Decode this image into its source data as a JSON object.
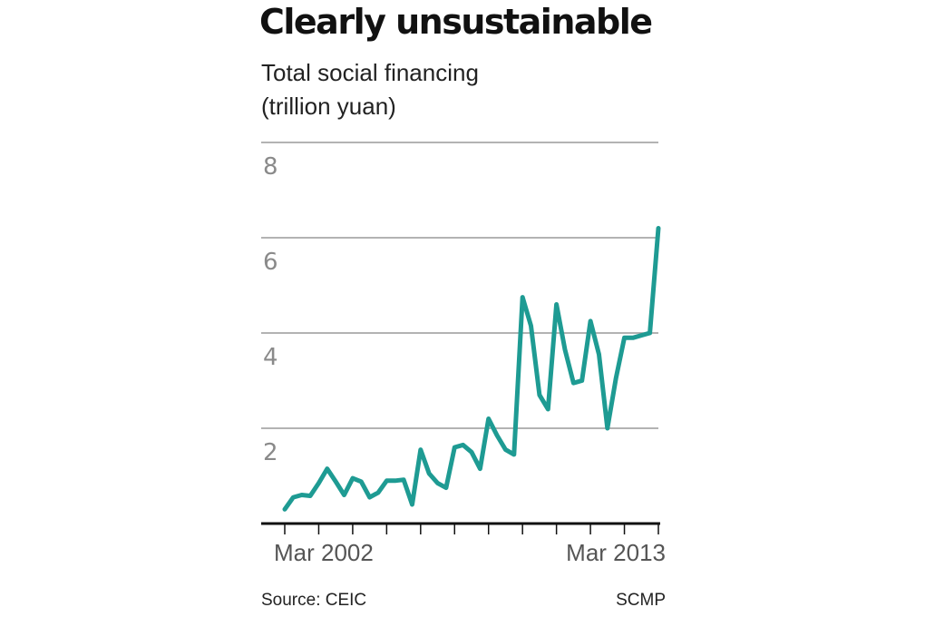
{
  "chart_data": {
    "type": "line",
    "title": "Clearly unsustainable",
    "subtitle_lines": [
      "Total social financing",
      "(trillion yuan)"
    ],
    "xlabel": "",
    "ylabel": "trillion yuan",
    "ylim": [
      0,
      8
    ],
    "y_ticks": [
      2,
      4,
      6,
      8
    ],
    "x_tick_labels": [
      "Mar 2002",
      "Mar 2013"
    ],
    "series": [
      {
        "name": "Total social financing",
        "color": "#1e9b93",
        "values": [
          0.3,
          0.55,
          0.6,
          0.58,
          0.85,
          1.15,
          0.88,
          0.6,
          0.95,
          0.88,
          0.55,
          0.65,
          0.9,
          0.9,
          0.92,
          0.4,
          1.55,
          1.05,
          0.85,
          0.75,
          1.6,
          1.65,
          1.5,
          1.15,
          2.2,
          1.85,
          1.55,
          1.45,
          4.75,
          4.15,
          2.7,
          2.4,
          4.6,
          3.65,
          2.95,
          3.0,
          4.25,
          3.55,
          2.0,
          3.05,
          3.9,
          3.9,
          3.95,
          4.0,
          6.2
        ]
      }
    ],
    "source": "Source: CEIC",
    "credit": "SCMP"
  }
}
